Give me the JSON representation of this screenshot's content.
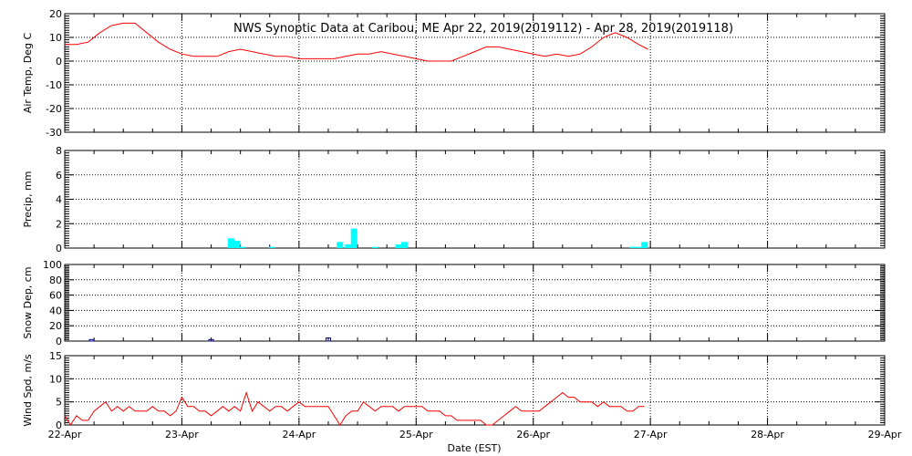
{
  "chart_data": {
    "type": "line",
    "title": "NWS Synoptic Data at Caribou, ME   Apr 22, 2019(2019112) - Apr 28, 2019(2019118)",
    "xlabel": "Date (EST)",
    "x_ticks": [
      "22-Apr",
      "23-Apr",
      "24-Apr",
      "25-Apr",
      "26-Apr",
      "27-Apr",
      "28-Apr",
      "29-Apr"
    ],
    "x_range_days": [
      0,
      7
    ],
    "panels": [
      {
        "id": "air_temp",
        "type": "line",
        "ylabel": "Air Temp, Deg C",
        "ylim": [
          -30,
          20
        ],
        "yticks": [
          -30,
          -20,
          -10,
          0,
          10,
          20
        ],
        "color": "#ff0000",
        "x_days": [
          0.0,
          0.1,
          0.2,
          0.3,
          0.4,
          0.5,
          0.6,
          0.7,
          0.8,
          0.9,
          1.0,
          1.1,
          1.2,
          1.3,
          1.4,
          1.5,
          1.6,
          1.7,
          1.8,
          1.9,
          2.0,
          2.1,
          2.2,
          2.3,
          2.4,
          2.5,
          2.6,
          2.7,
          2.8,
          2.9,
          3.0,
          3.1,
          3.2,
          3.3,
          3.4,
          3.5,
          3.6,
          3.7,
          3.8,
          3.9,
          4.0,
          4.1,
          4.2,
          4.3,
          4.4,
          4.5,
          4.6,
          4.7,
          4.8,
          4.9,
          4.98
        ],
        "values": [
          7,
          7,
          8,
          12,
          15,
          16,
          16,
          12,
          8,
          5,
          3,
          2,
          2,
          2,
          4,
          5,
          4,
          3,
          2,
          2,
          1,
          1,
          1,
          1,
          2,
          3,
          3,
          4,
          3,
          2,
          1,
          0,
          0,
          0,
          2,
          4,
          6,
          6,
          5,
          4,
          3,
          2,
          3,
          2,
          3,
          6,
          10,
          12,
          10,
          7,
          5
        ]
      },
      {
        "id": "precip",
        "type": "bar",
        "ylabel": "Precip, mm",
        "ylim": [
          0,
          8
        ],
        "yticks": [
          0,
          2,
          4,
          6,
          8
        ],
        "color": "#00ffff",
        "x_days": [
          1.42,
          1.47,
          1.52,
          1.77,
          2.35,
          2.42,
          2.47,
          2.65,
          2.85,
          2.9,
          4.85,
          4.9,
          4.95
        ],
        "values": [
          0.8,
          0.6,
          0.1,
          0.1,
          0.5,
          0.3,
          1.6,
          0.1,
          0.3,
          0.5,
          0.1,
          0.1,
          0.5
        ]
      },
      {
        "id": "snow_depth",
        "type": "bar",
        "ylabel": "Snow Dep, cm",
        "ylim": [
          0,
          100
        ],
        "yticks": [
          0,
          20,
          40,
          60,
          80,
          100
        ],
        "color": "#000080",
        "x_days": [
          0.23,
          1.25,
          2.25
        ],
        "values": [
          2,
          2,
          4
        ]
      },
      {
        "id": "wind_speed",
        "type": "line",
        "ylabel": "Wind Spd, m/s",
        "ylim": [
          0,
          15
        ],
        "yticks": [
          0,
          5,
          10,
          15
        ],
        "color": "#ff0000",
        "x_days": [
          0.0,
          0.05,
          0.1,
          0.15,
          0.2,
          0.25,
          0.3,
          0.35,
          0.4,
          0.45,
          0.5,
          0.55,
          0.6,
          0.65,
          0.7,
          0.75,
          0.8,
          0.85,
          0.9,
          0.95,
          1.0,
          1.05,
          1.1,
          1.15,
          1.2,
          1.25,
          1.3,
          1.35,
          1.4,
          1.45,
          1.5,
          1.55,
          1.6,
          1.65,
          1.7,
          1.75,
          1.8,
          1.85,
          1.9,
          1.95,
          2.0,
          2.05,
          2.1,
          2.15,
          2.2,
          2.25,
          2.3,
          2.35,
          2.4,
          2.45,
          2.5,
          2.55,
          2.6,
          2.65,
          2.7,
          2.75,
          2.8,
          2.85,
          2.9,
          2.95,
          3.0,
          3.05,
          3.1,
          3.15,
          3.2,
          3.25,
          3.3,
          3.35,
          3.4,
          3.45,
          3.5,
          3.55,
          3.6,
          3.65,
          3.7,
          3.75,
          3.8,
          3.85,
          3.9,
          3.95,
          4.0,
          4.05,
          4.1,
          4.15,
          4.2,
          4.25,
          4.3,
          4.35,
          4.4,
          4.45,
          4.5,
          4.55,
          4.6,
          4.65,
          4.7,
          4.75,
          4.8,
          4.85,
          4.9,
          4.95
        ],
        "values": [
          2,
          0,
          2,
          1,
          1,
          3,
          4,
          5,
          3,
          4,
          3,
          4,
          3,
          3,
          3,
          4,
          3,
          3,
          2,
          3,
          6,
          4,
          4,
          3,
          3,
          2,
          3,
          4,
          3,
          4,
          3,
          7,
          3,
          5,
          4,
          3,
          4,
          4,
          3,
          4,
          5,
          4,
          4,
          4,
          4,
          4,
          2,
          0,
          2,
          3,
          3,
          5,
          4,
          3,
          4,
          4,
          4,
          3,
          4,
          4,
          4,
          4,
          3,
          3,
          3,
          2,
          2,
          1,
          1,
          1,
          1,
          1,
          0,
          0,
          1,
          2,
          3,
          4,
          3,
          3,
          3,
          3,
          4,
          5,
          6,
          7,
          6,
          6,
          5,
          5,
          5,
          4,
          5,
          4,
          4,
          4,
          3,
          3,
          4,
          4
        ]
      }
    ]
  }
}
